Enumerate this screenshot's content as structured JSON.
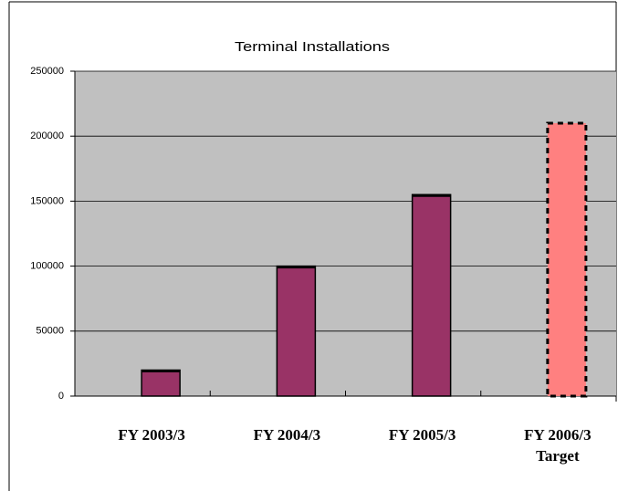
{
  "chart_data": {
    "type": "bar",
    "title": "Terminal Installations",
    "categories": [
      "FY 2003/3",
      "FY 2004/3",
      "FY 2005/3",
      "FY 2006/3\nTarget"
    ],
    "values": [
      20000,
      100000,
      155000,
      210000
    ],
    "colors": [
      "#993366",
      "#993366",
      "#993366",
      "#ff8080"
    ],
    "border_styles": [
      "solid",
      "solid",
      "solid",
      "dashed"
    ],
    "ylim": [
      0,
      250000
    ],
    "yticks": [
      0,
      50000,
      100000,
      150000,
      200000,
      250000
    ],
    "grid": true
  }
}
